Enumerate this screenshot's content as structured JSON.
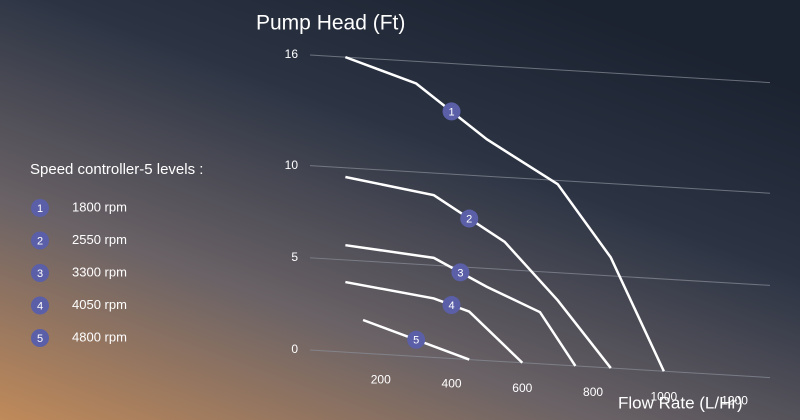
{
  "chart_data": {
    "type": "line",
    "x_label": "Flow Rate (L/Hr)",
    "y_label": "Pump Head (Ft)",
    "legend_title": "Speed controller-5 levels :",
    "xlim": [
      0,
      1300
    ],
    "xticks": [
      200,
      400,
      600,
      800,
      1000,
      1200
    ],
    "ylim": [
      0,
      16
    ],
    "yticks": [
      0,
      5,
      10,
      16
    ],
    "grid": true,
    "series": [
      {
        "name": "1800 rpm",
        "marker": "1",
        "color": "#ffffff",
        "x": [
          100,
          300,
          500,
          700,
          850,
          1000
        ],
        "values": [
          16,
          14.8,
          12,
          9.8,
          6,
          0
        ]
      },
      {
        "name": "2550 rpm",
        "marker": "2",
        "color": "#ffffff",
        "x": [
          100,
          350,
          550,
          700,
          850
        ],
        "values": [
          9.5,
          8.8,
          6.5,
          3.5,
          0
        ]
      },
      {
        "name": "3300 rpm",
        "marker": "3",
        "color": "#ffffff",
        "x": [
          100,
          350,
          500,
          650,
          750
        ],
        "values": [
          5.8,
          5.4,
          4,
          2.8,
          0
        ]
      },
      {
        "name": "4050 rpm",
        "marker": "4",
        "color": "#ffffff",
        "x": [
          100,
          350,
          450,
          600
        ],
        "values": [
          3.8,
          3.2,
          2.6,
          0
        ]
      },
      {
        "name": "4800 rpm",
        "marker": "5",
        "color": "#ffffff",
        "x": [
          150,
          450
        ],
        "values": [
          1.8,
          0
        ]
      }
    ]
  }
}
